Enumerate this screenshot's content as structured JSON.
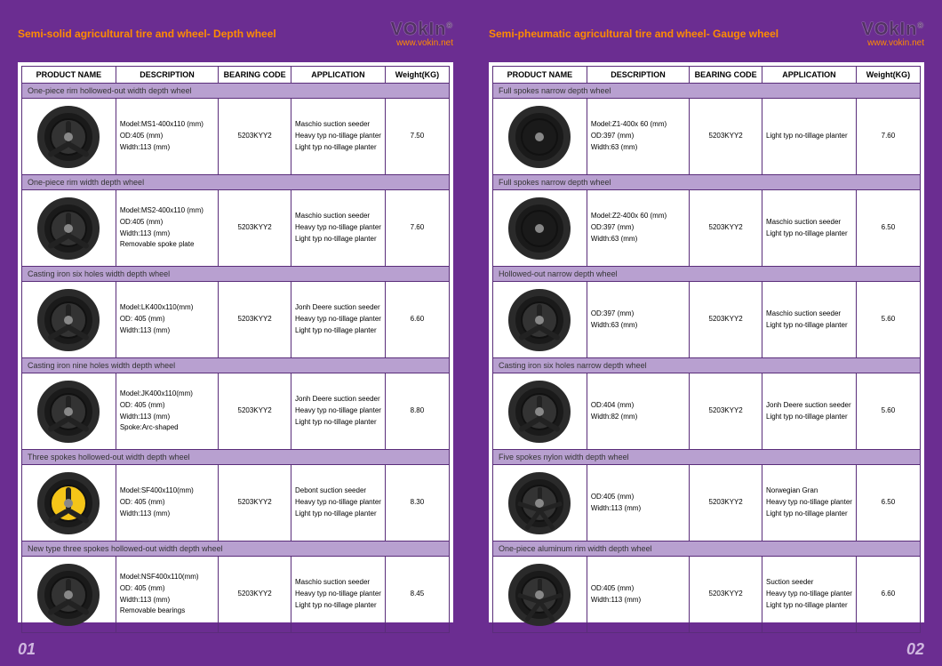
{
  "brand": "VOkIn",
  "brand_sup": "®",
  "url": "www.vokin.net",
  "columns": [
    "PRODUCT NAME",
    "DESCRIPTION",
    "BEARING CODE",
    "APPLICATION",
    "Weight(KG)"
  ],
  "pages": [
    {
      "title": "Semi-solid agricultural tire and wheel- Depth wheel",
      "pagenum": "01",
      "rows": [
        {
          "section": "One-piece rim hollowed-out width depth wheel",
          "wheel": "spoke3",
          "desc": [
            "Model:MS1-400x110 (mm)",
            "OD:405 (mm)",
            "Width:113 (mm)"
          ],
          "bearing": "5203KYY2",
          "app": [
            "Maschio suction seeder",
            "Heavy typ no-tillage planter",
            "Light typ no-tillage planter"
          ],
          "wt": "7.50"
        },
        {
          "section": "One-piece rim width depth wheel",
          "wheel": "spoke3",
          "desc": [
            "Model:MS2-400x110 (mm)",
            "OD:405 (mm)",
            "Width:113 (mm)",
            "Removable spoke plate"
          ],
          "bearing": "5203KYY2",
          "app": [
            "Maschio suction seeder",
            "Heavy typ no-tillage planter",
            "Light typ no-tillage planter"
          ],
          "wt": "7.60"
        },
        {
          "section": "Casting iron six holes width depth wheel",
          "wheel": "spoke3",
          "desc": [
            "Model:LK400x110(mm)",
            "OD: 405 (mm)",
            "Width:113 (mm)"
          ],
          "bearing": "5203KYY2",
          "app": [
            "Jonh Deere suction seeder",
            "Heavy typ no-tillage planter",
            "Light typ no-tillage planter"
          ],
          "wt": "6.60"
        },
        {
          "section": "Casting iron nine holes width depth wheel",
          "wheel": "spoke3",
          "desc": [
            "Model:JK400x110(mm)",
            "OD: 405 (mm)",
            "Width:113 (mm)",
            "Spoke:Arc-shaped"
          ],
          "bearing": "5203KYY2",
          "app": [
            "Jonh Deere suction seeder",
            "Heavy typ no-tillage planter",
            "Light typ no-tillage planter"
          ],
          "wt": "8.80"
        },
        {
          "section": "Three spokes hollowed-out width depth wheel",
          "wheel": "spoke3 yellow-hub",
          "desc": [
            "Model:SF400x110(mm)",
            "OD: 405 (mm)",
            "Width:113 (mm)"
          ],
          "bearing": "5203KYY2",
          "app": [
            "Debont suction seeder",
            "Heavy typ no-tillage planter",
            "Light typ no-tillage planter"
          ],
          "wt": "8.30"
        },
        {
          "section": "New type three spokes hollowed-out width depth wheel",
          "wheel": "spoke3",
          "desc": [
            "Model:NSF400x110(mm)",
            "OD: 405 (mm)",
            "Width:113 (mm)",
            "Removable bearings"
          ],
          "bearing": "5203KYY2",
          "app": [
            "Maschio suction seeder",
            "Heavy typ no-tillage planter",
            "Light typ no-tillage planter"
          ],
          "wt": "8.45"
        }
      ]
    },
    {
      "title": "Semi-pheumatic agricultural tire and wheel- Gauge wheel",
      "pagenum": "02",
      "rows": [
        {
          "section": "Full spokes narrow depth wheel",
          "wheel": "solid-disc",
          "desc": [
            "Model:Z1-400x 60 (mm)",
            "OD:397 (mm)",
            "Width:63 (mm)"
          ],
          "bearing": "5203KYY2",
          "app": [
            "Light typ no-tillage planter"
          ],
          "wt": "7.60"
        },
        {
          "section": "Full spokes narrow depth wheel",
          "wheel": "solid-disc",
          "desc": [
            "Model:Z2-400x 60 (mm)",
            "OD:397 (mm)",
            "Width:63 (mm)"
          ],
          "bearing": "5203KYY2",
          "app": [
            "Maschio suction seeder",
            "Light typ no-tillage planter"
          ],
          "wt": "6.50"
        },
        {
          "section": "Hollowed-out narrow depth wheel",
          "wheel": "spoke3",
          "desc": [
            "OD:397 (mm)",
            "Width:63 (mm)"
          ],
          "bearing": "5203KYY2",
          "app": [
            "Maschio suction seeder",
            "Light typ no-tillage planter"
          ],
          "wt": "5.60"
        },
        {
          "section": "Casting iron six holes narrow depth wheel",
          "wheel": "spoke3",
          "desc": [
            "OD:404 (mm)",
            "Width:82 (mm)"
          ],
          "bearing": "5203KYY2",
          "app": [
            "Jonh Deere suction seeder",
            "Light typ no-tillage planter"
          ],
          "wt": "5.60"
        },
        {
          "section": "Five spokes nylon width depth wheel",
          "wheel": "spoke5",
          "desc": [
            "OD:405 (mm)",
            "Width:113 (mm)"
          ],
          "bearing": "5203KYY2",
          "app": [
            "Norwegian Gran",
            "Heavy typ no-tillage planter",
            "Light typ no-tillage planter"
          ],
          "wt": "6.50"
        },
        {
          "section": "One-piece aluminum rim width depth wheel",
          "wheel": "spoke5",
          "desc": [
            "OD:405 (mm)",
            "Width:113 (mm)"
          ],
          "bearing": "5203KYY2",
          "app": [
            "Suction seeder",
            "Heavy typ no-tillage planter",
            "Light typ no-tillage planter"
          ],
          "wt": "6.60"
        }
      ]
    }
  ]
}
